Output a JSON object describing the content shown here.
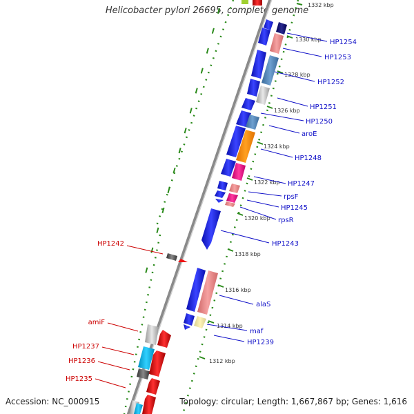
{
  "header": {
    "title": "Helicobacter pylori 26695, complete genome"
  },
  "footer": {
    "accession": "Accession: NC_000915",
    "stats": "Topology: circular; Length: 1,667,867 bp; Genes: 1,616"
  },
  "scale": {
    "ticks": [
      "1332 kbp",
      "1330 kbp",
      "1328 kbp",
      "1326 kbp",
      "1324 kbp",
      "1322 kbp",
      "1320 kbp",
      "1318 kbp",
      "1316 kbp",
      "1314 kbp",
      "1312 kbp"
    ]
  },
  "genes_forward": [
    "HP1254",
    "HP1253",
    "HP1252",
    "HP1251",
    "HP1250",
    "aroE",
    "HP1248",
    "HP1247",
    "rpsF",
    "HP1245",
    "rpsR",
    "HP1243",
    "alaS",
    "maf",
    "HP1239"
  ],
  "genes_reverse": [
    "HP1242",
    "amiF",
    "HP1237",
    "HP1236",
    "HP1235"
  ],
  "colors": {
    "forward_label": "#1010c8",
    "reverse_label": "#cc0000",
    "forward_arrow": "#1e22e8",
    "reverse_arrow": "#ee1111",
    "ruler_dots": "#2a8a1a"
  }
}
